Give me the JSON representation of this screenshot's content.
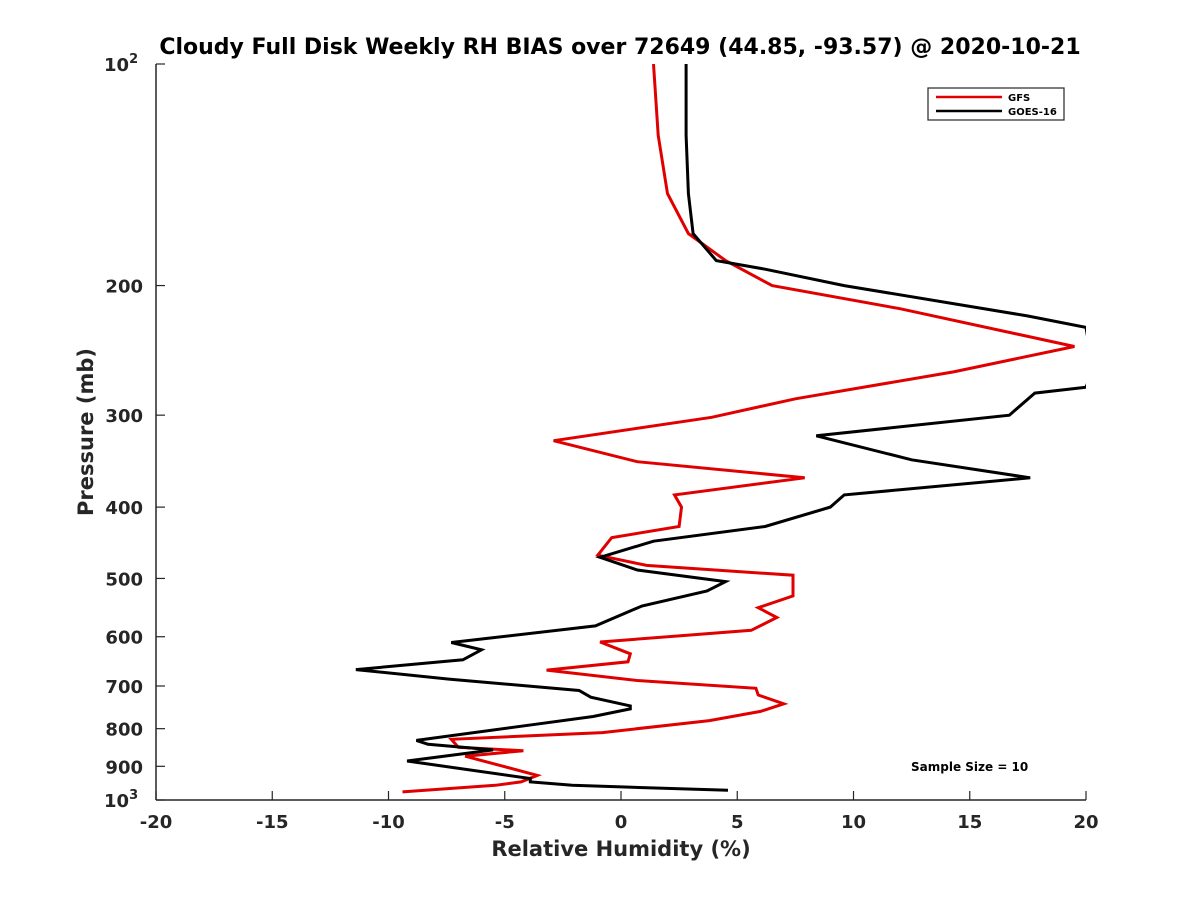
{
  "chart_data": {
    "type": "line",
    "title": "Cloudy Full Disk Weekly RH BIAS over 72649 (44.85, -93.57) @ 2020-10-21",
    "xlabel": "Relative Humidity (%)",
    "ylabel": "Pressure (mb)",
    "xlim": [
      -20,
      20
    ],
    "ylim": [
      100,
      1000
    ],
    "y_scale": "log",
    "y_reversed": true,
    "x_ticks": [
      -20,
      -15,
      -10,
      -5,
      0,
      5,
      10,
      15,
      20
    ],
    "x_tick_labels": [
      "-20",
      "-15",
      "-10",
      "-5",
      "0",
      "5",
      "10",
      "15",
      "20"
    ],
    "y_ticks": [
      {
        "value": 100,
        "label": "10",
        "sup": "2"
      },
      {
        "value": 200,
        "label": "200",
        "sup": ""
      },
      {
        "value": 300,
        "label": "300",
        "sup": ""
      },
      {
        "value": 400,
        "label": "400",
        "sup": ""
      },
      {
        "value": 500,
        "label": "500",
        "sup": ""
      },
      {
        "value": 600,
        "label": "600",
        "sup": ""
      },
      {
        "value": 700,
        "label": "700",
        "sup": ""
      },
      {
        "value": 800,
        "label": "800",
        "sup": ""
      },
      {
        "value": 900,
        "label": "900",
        "sup": ""
      },
      {
        "value": 1000,
        "label": "10",
        "sup": "3"
      }
    ],
    "grid": false,
    "legend_position": "top-right",
    "annotation": "Sample Size = 10",
    "series": [
      {
        "name": "GFS",
        "color": "#e00000",
        "points": [
          [
            1.4,
            100
          ],
          [
            1.6,
            125
          ],
          [
            2.0,
            150
          ],
          [
            2.9,
            170
          ],
          [
            4.5,
            185
          ],
          [
            6.5,
            200
          ],
          [
            12.0,
            215
          ],
          [
            19.5,
            242
          ],
          [
            14.3,
            262
          ],
          [
            7.5,
            285
          ],
          [
            3.9,
            302
          ],
          [
            -2.9,
            325
          ],
          [
            0.7,
            347
          ],
          [
            7.9,
            365
          ],
          [
            2.3,
            385
          ],
          [
            2.6,
            400
          ],
          [
            2.5,
            425
          ],
          [
            -0.4,
            440
          ],
          [
            -1.0,
            465
          ],
          [
            1.1,
            480
          ],
          [
            7.4,
            495
          ],
          [
            7.4,
            528
          ],
          [
            5.9,
            548
          ],
          [
            6.7,
            565
          ],
          [
            5.6,
            588
          ],
          [
            -0.9,
            610
          ],
          [
            0.4,
            633
          ],
          [
            0.3,
            649
          ],
          [
            -3.2,
            666
          ],
          [
            0.7,
            688
          ],
          [
            5.8,
            705
          ],
          [
            5.9,
            720
          ],
          [
            7.0,
            740
          ],
          [
            6.0,
            758
          ],
          [
            3.8,
            780
          ],
          [
            -0.8,
            810
          ],
          [
            -7.3,
            827
          ],
          [
            -7.0,
            848
          ],
          [
            -4.2,
            857
          ],
          [
            -6.7,
            872
          ],
          [
            -3.6,
            926
          ],
          [
            -4.3,
            945
          ],
          [
            -5.4,
            955
          ],
          [
            -9.4,
            975
          ]
        ]
      },
      {
        "name": "GOES-16",
        "color": "#000000",
        "points": [
          [
            2.8,
            100
          ],
          [
            2.8,
            125
          ],
          [
            2.9,
            150
          ],
          [
            3.1,
            170
          ],
          [
            4.1,
            185
          ],
          [
            6.2,
            190
          ],
          [
            9.6,
            200
          ],
          [
            17.5,
            220
          ],
          [
            20.0,
            228
          ],
          [
            20.3,
            260
          ],
          [
            20.0,
            275
          ],
          [
            17.8,
            280
          ],
          [
            16.7,
            300
          ],
          [
            8.4,
            320
          ],
          [
            12.5,
            345
          ],
          [
            17.6,
            365
          ],
          [
            9.6,
            385
          ],
          [
            9.0,
            400
          ],
          [
            6.2,
            425
          ],
          [
            1.4,
            445
          ],
          [
            -0.9,
            468
          ],
          [
            0.7,
            487
          ],
          [
            4.5,
            505
          ],
          [
            3.7,
            520
          ],
          [
            0.9,
            545
          ],
          [
            -1.1,
            580
          ],
          [
            -7.3,
            611
          ],
          [
            -6.0,
            625
          ],
          [
            -6.8,
            645
          ],
          [
            -11.4,
            665
          ],
          [
            -7.4,
            685
          ],
          [
            -1.8,
            710
          ],
          [
            -1.3,
            725
          ],
          [
            0.4,
            745
          ],
          [
            0.4,
            752
          ],
          [
            -1.2,
            770
          ],
          [
            -3.8,
            790
          ],
          [
            -8.8,
            830
          ],
          [
            -8.3,
            840
          ],
          [
            -5.5,
            855
          ],
          [
            -9.2,
            885
          ],
          [
            -3.9,
            935
          ],
          [
            -3.9,
            945
          ],
          [
            -2.1,
            955
          ],
          [
            4.6,
            970
          ]
        ]
      }
    ]
  }
}
